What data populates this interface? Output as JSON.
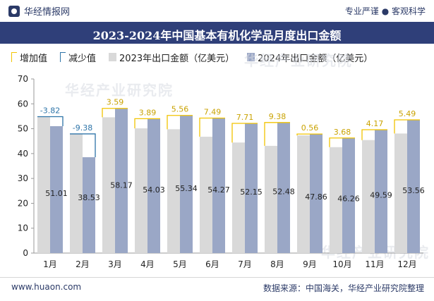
{
  "header": {
    "brand": "华经情报网",
    "tagline": "专业严谨 ● 客观科学"
  },
  "watermark": "华经产业研究院",
  "colors": {
    "title_bg": "#2f3f79",
    "bar_2023": "#d9d9d9",
    "bar_2024": "#9aa7c6",
    "increase": "#f2c400",
    "decrease": "#2d74a8",
    "brand_text": "#2b3a67"
  },
  "chart_data": {
    "type": "bar",
    "title": "2023-2024年中国基本有机化学品月度出口金额",
    "legend": [
      "增加值",
      "减少值",
      "2023年出口金额（亿美元）",
      "2024年出口金额（亿美元）"
    ],
    "categories": [
      "1月",
      "2月",
      "3月",
      "4月",
      "5月",
      "6月",
      "7月",
      "8月",
      "9月",
      "10月",
      "11月",
      "12月"
    ],
    "series": [
      {
        "name": "2023年出口金额（亿美元）",
        "values": [
          54.83,
          47.91,
          54.58,
          50.14,
          49.78,
          46.78,
          44.44,
          43.1,
          47.3,
          42.58,
          45.42,
          48.07
        ]
      },
      {
        "name": "2024年出口金额（亿美元）",
        "values": [
          51.01,
          38.53,
          58.17,
          54.03,
          55.34,
          54.27,
          52.15,
          52.48,
          47.86,
          46.26,
          49.59,
          53.56
        ]
      }
    ],
    "change": {
      "labels": [
        "-3.82",
        "-9.38",
        "3.59",
        "3.89",
        "5.56",
        "7.49",
        "7.71",
        "9.38",
        "0.56",
        "3.68",
        "4.17",
        "5.49"
      ],
      "values": [
        -3.82,
        -9.38,
        3.59,
        3.89,
        5.56,
        7.49,
        7.71,
        9.38,
        0.56,
        3.68,
        4.17,
        5.49
      ]
    },
    "data_labels_2024": [
      "51.01",
      "38.53",
      "58.17",
      "54.03",
      "55.34",
      "54.27",
      "52.15",
      "52.48",
      "47.86",
      "46.26",
      "49.59",
      "53.56"
    ],
    "yticks": [
      0,
      10,
      20,
      30,
      40,
      50,
      60,
      70
    ],
    "ylim": [
      0,
      70
    ],
    "xlabel": "",
    "ylabel": "",
    "grid": false,
    "legend_position": "top-left"
  },
  "footer": {
    "website": "www.huaon.com",
    "source": "数据来源：中国海关，华经产业研究院整理"
  }
}
